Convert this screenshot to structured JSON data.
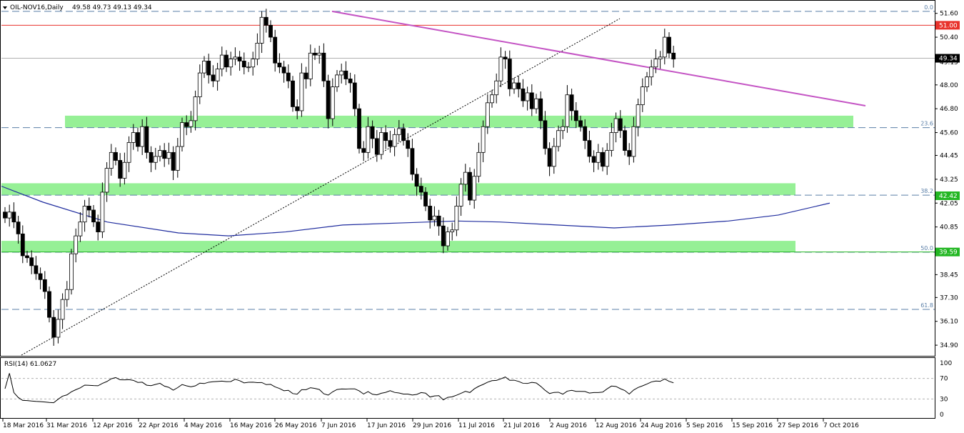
{
  "header": {
    "symbol": "OIL-NOV16,Daily",
    "ohlc": "49.58 49.73 49.13 49.34"
  },
  "rsi": {
    "label": "RSI(14) 61.0627",
    "ticks": [
      "100",
      "70",
      "30",
      "0"
    ],
    "last": 61.06
  },
  "price_axis": {
    "ticks": [
      "51.60",
      "50.40",
      "49.15",
      "48.00",
      "46.80",
      "45.60",
      "44.45",
      "43.25",
      "42.05",
      "40.85",
      "39.65",
      "38.45",
      "37.30",
      "36.10",
      "34.90"
    ],
    "markers": [
      {
        "value": "51.00",
        "price": 51.0,
        "color": "#e8322b"
      },
      {
        "value": "49.34",
        "price": 49.34,
        "color": "#000000"
      },
      {
        "value": "42.42",
        "price": 42.42,
        "color": "#23b723"
      },
      {
        "value": "39.59",
        "price": 39.59,
        "color": "#23b723"
      }
    ]
  },
  "fibonacci": [
    {
      "label": "0.0",
      "price": 51.7
    },
    {
      "label": "23.6",
      "price": 45.85
    },
    {
      "label": "38.2",
      "price": 42.45
    },
    {
      "label": "50.0",
      "price": 39.58
    },
    {
      "label": "61.8",
      "price": 36.7
    }
  ],
  "x_axis": {
    "labels": [
      "18 Mar 2016",
      "31 Mar 2016",
      "12 Apr 2016",
      "22 Apr 2016",
      "4 May 2016",
      "16 May 2016",
      "26 May 2016",
      "7 Jun 2016",
      "17 Jun 2016",
      "29 Jun 2016",
      "11 Jul 2016",
      "21 Jul 2016",
      "2 Aug 2016",
      "12 Aug 2016",
      "24 Aug 2016",
      "5 Sep 2016",
      "15 Sep 2016",
      "27 Sep 2016",
      "7 Oct 2016"
    ]
  },
  "chart_data": {
    "type": "candlestick",
    "title": "OIL-NOV16,Daily",
    "ylim": [
      34.4,
      52.2
    ],
    "support_zones": [
      [
        45.85,
        46.45
      ],
      [
        42.45,
        43.05
      ],
      [
        39.58,
        40.15
      ]
    ],
    "resistance_line": 51.0,
    "closes": [
      41.3,
      41.6,
      41.1,
      40.5,
      39.4,
      39.3,
      38.9,
      38.5,
      38.2,
      37.6,
      36.3,
      35.3,
      36.2,
      37.2,
      37.7,
      39.5,
      40.4,
      41.1,
      41.9,
      41.7,
      41.1,
      40.6,
      42.6,
      43.8,
      44.6,
      44.2,
      43.3,
      44.1,
      45.1,
      45.6,
      44.9,
      45.9,
      44.6,
      44.1,
      44.4,
      44.7,
      44.3,
      44.6,
      43.7,
      44.9,
      46.1,
      45.9,
      46.2,
      47.4,
      48.6,
      49.2,
      48.5,
      48.2,
      48.8,
      49.5,
      48.9,
      49.3,
      49.4,
      49.2,
      48.9,
      48.9,
      49.3,
      50.1,
      51.4,
      51.0,
      50.4,
      49.1,
      48.9,
      48.6,
      48.2,
      46.9,
      46.7,
      48.6,
      48.3,
      49.6,
      49.5,
      49.6,
      48.2,
      46.3,
      47.9,
      48.5,
      48.7,
      48.3,
      48.1,
      46.8,
      44.8,
      44.6,
      45.9,
      45.3,
      44.5,
      45.6,
      45.2,
      44.9,
      45.5,
      45.8,
      45.2,
      44.8,
      43.5,
      42.9,
      42.6,
      41.9,
      41.2,
      41.4,
      40.9,
      39.9,
      40.6,
      40.7,
      41.9,
      43.0,
      43.6,
      42.2,
      43.4,
      44.6,
      45.9,
      47.1,
      47.5,
      48.2,
      49.4,
      49.3,
      47.8,
      48.1,
      47.8,
      47.2,
      47.6,
      46.8,
      47.3,
      46.2,
      44.8,
      43.9,
      44.9,
      45.7,
      45.9,
      47.5,
      46.7,
      46.2,
      45.9,
      45.2,
      44.4,
      44.1,
      44.6,
      43.9,
      44.7,
      45.6,
      46.3,
      45.7,
      44.7,
      44.4,
      45.9,
      47.0,
      47.9,
      48.4,
      48.9,
      49.3,
      49.4,
      50.4,
      49.6,
      49.3
    ]
  }
}
